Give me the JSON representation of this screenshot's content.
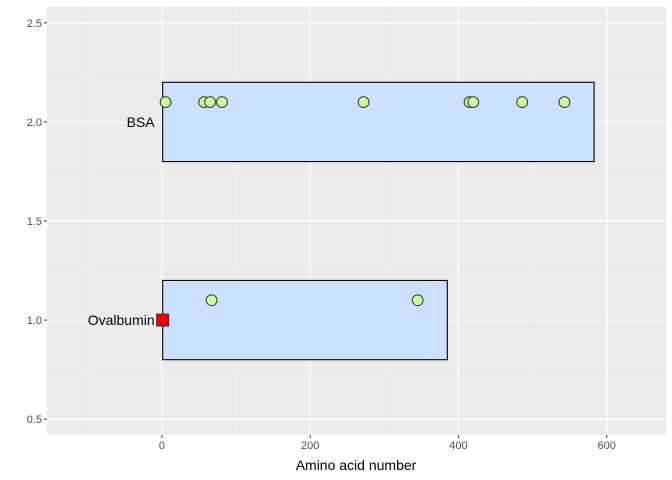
{
  "chart_data": {
    "type": "scatter",
    "title": "",
    "xlabel": "Amino acid number",
    "ylabel": "",
    "xlim": [
      -155,
      680
    ],
    "ylim": [
      0.42,
      2.58
    ],
    "x_ticks": [
      0,
      200,
      400,
      600
    ],
    "x_tick_labels": [
      "0",
      "200",
      "400",
      "600"
    ],
    "y_ticks": [
      0.5,
      1.0,
      1.5,
      2.0,
      2.5
    ],
    "y_tick_labels": [
      "0.5",
      "1.0",
      "1.5",
      "2.0",
      "2.5"
    ],
    "grid": true,
    "legend": "none",
    "colors": {
      "panel_background": "#ebebeb",
      "grid_major": "#ffffff",
      "grid_minor": "#f5f5f5",
      "protein_box_fill": "#cce0ff",
      "protein_box_stroke": "#000000",
      "site_point_fill": "#ccff99",
      "site_point_stroke": "#333333",
      "nterm_marker_fill": "#ee0000"
    },
    "proteins": [
      {
        "name": "BSA",
        "y": 2.0,
        "start": 1,
        "end": 583,
        "ymin": 1.8,
        "ymax": 2.2,
        "sites_y": 2.1,
        "sites": [
          5,
          57,
          65,
          81,
          272,
          415,
          420,
          486,
          543
        ]
      },
      {
        "name": "Ovalbumin",
        "y": 1.0,
        "start": 1,
        "end": 385,
        "ymin": 0.8,
        "ymax": 1.2,
        "sites_y": 1.1,
        "sites": [
          67,
          345
        ],
        "nterm_marker": {
          "x": 1,
          "y": 1.0
        }
      }
    ]
  }
}
